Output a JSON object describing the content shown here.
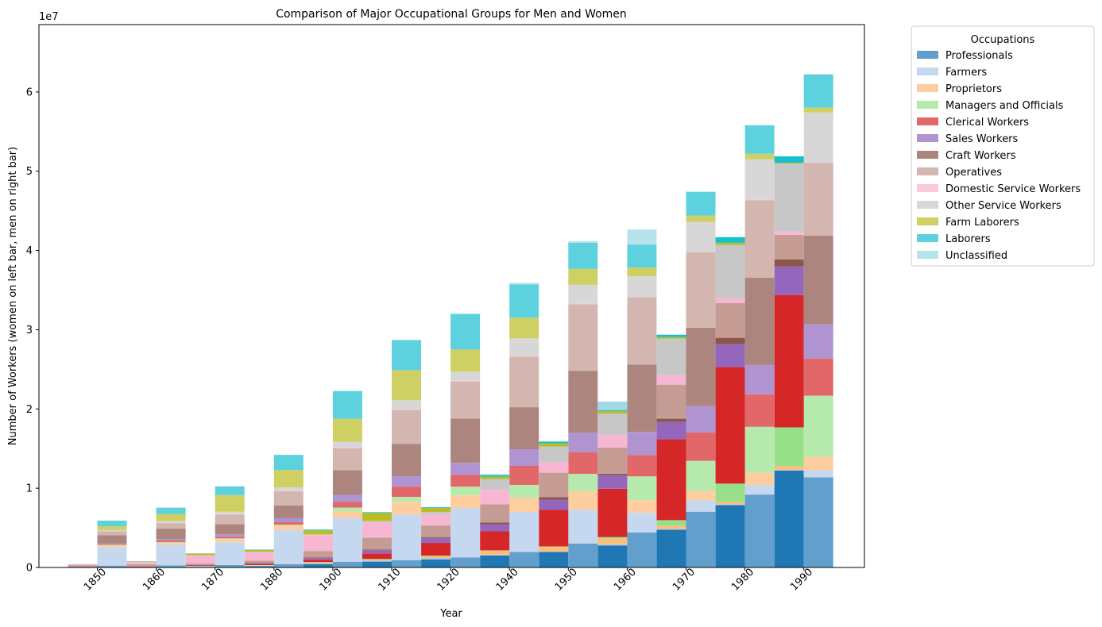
{
  "chart_data": {
    "type": "bar",
    "title": "Comparison of Major Occupational Groups for Men and Women",
    "xlabel": "Year",
    "ylabel": "Number of Workers (women on left bar, men on right bar)",
    "y_scale_label": "1e7",
    "ylim": [
      0,
      68500000
    ],
    "yticks": [
      0,
      10000000,
      20000000,
      30000000,
      40000000,
      50000000,
      60000000
    ],
    "ytick_labels": [
      "0",
      "1",
      "2",
      "3",
      "4",
      "5",
      "6"
    ],
    "categories": [
      "1850",
      "1860",
      "1870",
      "1880",
      "1900",
      "1910",
      "1920",
      "1940",
      "1950",
      "1960",
      "1970",
      "1980",
      "1990"
    ],
    "grid": false,
    "legend": {
      "title": "Occupations",
      "placement": "outside right, top"
    },
    "series": [
      {
        "name": "Professionals",
        "women_color": "#1f77b4",
        "men_color": "#639fcc",
        "women": [
          20000,
          30000,
          80000,
          170000,
          430000,
          740000,
          1020000,
          1510000,
          1960000,
          2780000,
          4770000,
          7880000,
          12230000
        ],
        "men": [
          230000,
          260000,
          310000,
          430000,
          700000,
          930000,
          1270000,
          1950000,
          3030000,
          4430000,
          7040000,
          9200000,
          11370000
        ]
      },
      {
        "name": "Farmers",
        "women_color": "#aec7e8",
        "men_color": "#c6d8ef",
        "women": [
          10000,
          10000,
          50000,
          50000,
          100000,
          130000,
          180000,
          100000,
          50000,
          150000,
          100000,
          100000,
          100000
        ],
        "men": [
          2330000,
          2590000,
          2870000,
          4280000,
          5560000,
          5770000,
          6230000,
          5070000,
          4240000,
          2470000,
          1420000,
          1200000,
          900000
        ]
      },
      {
        "name": "Proprietors",
        "women_color": "#ffbb78",
        "men_color": "#ffcea0",
        "women": [
          20000,
          20000,
          50000,
          50000,
          100000,
          100000,
          200000,
          500000,
          600000,
          700000,
          400000,
          300000,
          450000
        ],
        "men": [
          200000,
          250000,
          400000,
          600000,
          800000,
          1600000,
          1600000,
          1800000,
          2350000,
          1600000,
          1200000,
          1550000,
          1700000
        ]
      },
      {
        "name": "Managers and Officials",
        "women_color": "#98df8a",
        "men_color": "#b6e9ac",
        "women": [
          10000,
          10000,
          20000,
          30000,
          50000,
          100000,
          100000,
          50000,
          50000,
          200000,
          700000,
          2300000,
          4900000
        ],
        "men": [
          100000,
          100000,
          100000,
          100000,
          500000,
          600000,
          1100000,
          1600000,
          2200000,
          3000000,
          3800000,
          5800000,
          7700000
        ]
      },
      {
        "name": "Clerical Workers",
        "women_color": "#d62728",
        "men_color": "#e26769",
        "women": [
          10000,
          50000,
          50000,
          100000,
          300000,
          700000,
          1600000,
          2400000,
          4600000,
          6100000,
          10200000,
          14700000,
          16700000
        ],
        "men": [
          100000,
          200000,
          200000,
          300000,
          700000,
          1300000,
          1500000,
          2400000,
          2700000,
          2700000,
          3600000,
          4100000,
          4700000
        ]
      },
      {
        "name": "Sales Workers",
        "women_color": "#9467bd",
        "men_color": "#b094d1",
        "women": [
          10000,
          20000,
          50000,
          100000,
          200000,
          400000,
          600000,
          900000,
          1300000,
          1700000,
          2200000,
          2900000,
          3600000
        ],
        "men": [
          100000,
          200000,
          300000,
          500000,
          900000,
          1300000,
          1500000,
          2100000,
          2500000,
          2900000,
          3300000,
          3700000,
          4300000
        ]
      },
      {
        "name": "Craft Workers",
        "women_color": "#8c564b",
        "men_color": "#ab857e",
        "women": [
          10000,
          20000,
          20000,
          50000,
          100000,
          100000,
          100000,
          200000,
          300000,
          200000,
          400000,
          800000,
          900000
        ],
        "men": [
          1000000,
          1300000,
          1300000,
          1600000,
          3100000,
          4100000,
          5600000,
          5300000,
          7800000,
          8500000,
          9900000,
          11000000,
          11200000
        ]
      },
      {
        "name": "Operatives",
        "women_color": "#c49c94",
        "men_color": "#d3b6b0",
        "women": [
          200000,
          250000,
          200000,
          300000,
          800000,
          1500000,
          1500000,
          2300000,
          3100000,
          3300000,
          4300000,
          4400000,
          3100000
        ],
        "men": [
          500000,
          700000,
          1200000,
          1800000,
          2800000,
          4300000,
          4700000,
          6400000,
          8400000,
          8500000,
          9500000,
          9800000,
          9200000
        ]
      },
      {
        "name": "Domestic Service Workers",
        "women_color": "#f7b6d2",
        "men_color": "#f9c9de",
        "women": [
          100000,
          300000,
          1000000,
          1100000,
          2000000,
          1900000,
          1400000,
          1900000,
          1300000,
          1600000,
          1200000,
          600000,
          400000
        ],
        "men": [
          50000,
          50000,
          50000,
          100000,
          100000,
          100000,
          100000,
          100000,
          50000,
          50000,
          50000,
          50000,
          50000
        ]
      },
      {
        "name": "Other Service Workers",
        "women_color": "#c7c7c7",
        "men_color": "#d7d7d7",
        "women": [
          10000,
          20000,
          30000,
          50000,
          100000,
          200000,
          300000,
          1300000,
          2000000,
          2700000,
          4600000,
          6700000,
          8600000
        ],
        "men": [
          100000,
          200000,
          300000,
          400000,
          700000,
          1100000,
          1100000,
          2200000,
          2400000,
          2600000,
          3800000,
          5100000,
          6300000
        ]
      },
      {
        "name": "Farm Laborers",
        "women_color": "#bcbd22",
        "men_color": "#cfd063",
        "women": [
          10000,
          50000,
          200000,
          200000,
          500000,
          1000000,
          500000,
          300000,
          400000,
          300000,
          200000,
          300000,
          100000
        ],
        "men": [
          500000,
          900000,
          2100000,
          2200000,
          2900000,
          3800000,
          2800000,
          2600000,
          2000000,
          1100000,
          800000,
          700000,
          600000
        ]
      },
      {
        "name": "Laborers",
        "women_color": "#17becf",
        "men_color": "#5dd1dd",
        "women": [
          10000,
          20000,
          20000,
          50000,
          100000,
          100000,
          100000,
          200000,
          200000,
          100000,
          300000,
          700000,
          800000
        ],
        "men": [
          700000,
          800000,
          1100000,
          1900000,
          3500000,
          3800000,
          4500000,
          4200000,
          3300000,
          2900000,
          3000000,
          3600000,
          4200000
        ]
      },
      {
        "name": "Unclassified",
        "women_color": "#9edae5",
        "men_color": "#b7e3eb",
        "women": [
          10000,
          10000,
          10000,
          10000,
          10000,
          10000,
          10000,
          100000,
          100000,
          1100000,
          10000,
          10000,
          10000
        ],
        "men": [
          10000,
          10000,
          10000,
          10000,
          10000,
          10000,
          10000,
          200000,
          200000,
          1900000,
          10000,
          10000,
          10000
        ]
      }
    ]
  }
}
